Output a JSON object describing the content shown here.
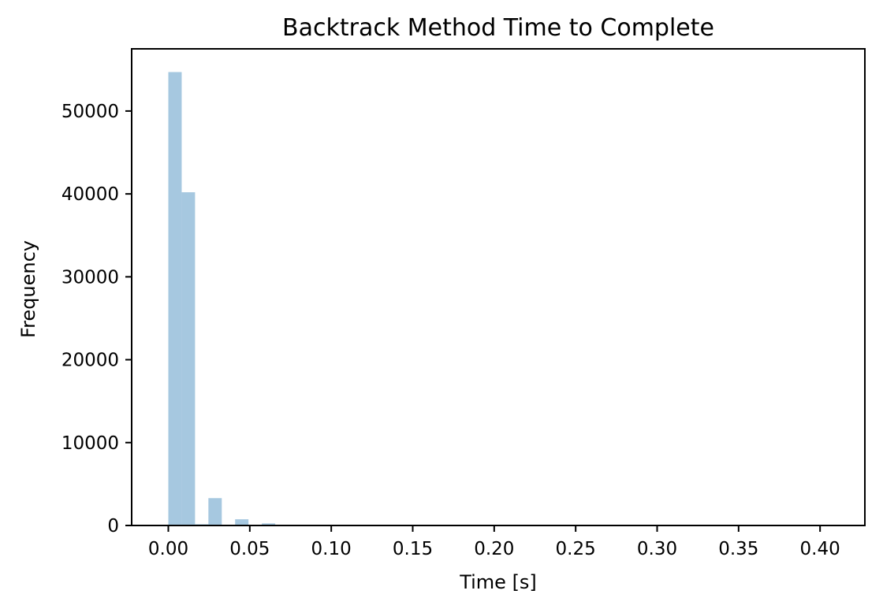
{
  "chart_data": {
    "type": "bar",
    "title": "Backtrack Method Time to Complete",
    "xlabel": "Time [s]",
    "ylabel": "Frequency",
    "xlim": [
      -0.0225,
      0.4275
    ],
    "ylim": [
      0,
      57500
    ],
    "xticks": [
      "0.00",
      "0.05",
      "0.10",
      "0.15",
      "0.20",
      "0.25",
      "0.30",
      "0.35",
      "0.40"
    ],
    "xtick_values": [
      0.0,
      0.05,
      0.1,
      0.15,
      0.2,
      0.25,
      0.3,
      0.35,
      0.4
    ],
    "yticks": [
      "0",
      "10000",
      "20000",
      "30000",
      "40000",
      "50000"
    ],
    "ytick_values": [
      0,
      10000,
      20000,
      30000,
      40000,
      50000
    ],
    "bin_edges": [
      0.0,
      0.0082,
      0.0164,
      0.0246,
      0.0328,
      0.041,
      0.0492,
      0.0574,
      0.0656,
      0.0738,
      0.082,
      0.0902,
      0.0984,
      0.1066,
      0.1148,
      0.123,
      0.1312,
      0.1394,
      0.1476,
      0.1558,
      0.164,
      0.1722,
      0.1804,
      0.1886,
      0.1968,
      0.205,
      0.2132,
      0.2214,
      0.2296,
      0.2378,
      0.246,
      0.2542,
      0.2624,
      0.2706,
      0.2788,
      0.287,
      0.2952,
      0.3034,
      0.3116,
      0.3198,
      0.328,
      0.3362,
      0.3444,
      0.3526,
      0.3608,
      0.369,
      0.3772,
      0.3854,
      0.3936,
      0.4018,
      0.41
    ],
    "counts": [
      54700,
      40200,
      150,
      3300,
      60,
      750,
      20,
      250,
      15,
      40,
      10,
      20,
      5,
      10,
      5,
      5,
      3,
      3,
      2,
      2,
      2,
      1,
      1,
      1,
      1,
      1,
      1,
      1,
      1,
      1,
      1,
      1,
      1,
      1,
      1,
      1,
      1,
      1,
      1,
      1,
      1,
      1,
      1,
      1,
      1,
      1,
      1,
      1,
      1,
      1
    ],
    "bar_color": "#a6c8e0",
    "grid": false
  }
}
